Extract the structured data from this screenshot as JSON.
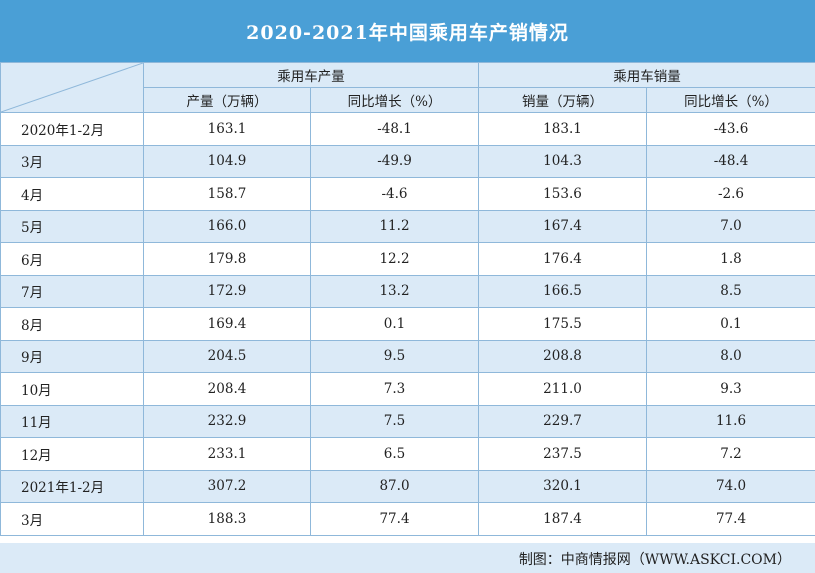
{
  "title": "2020-2021年中国乘用车产销情况",
  "header": {
    "groups": [
      "乘用车产量",
      "乘用车销量"
    ],
    "subheaders": [
      "产量（万辆）",
      "同比增长（%）",
      "销量（万辆）",
      "同比增长（%）"
    ]
  },
  "source": "制图：中商情报网（WWW.ASKCI.COM）",
  "chart_data": {
    "type": "table",
    "title": "2020-2021年中国乘用车产销情况",
    "columns": [
      "",
      "产量（万辆）",
      "同比增长（%）",
      "销量（万辆）",
      "同比增长（%）"
    ],
    "column_groups": [
      {
        "name": "乘用车产量",
        "columns": [
          "产量（万辆）",
          "同比增长（%）"
        ]
      },
      {
        "name": "乘用车销量",
        "columns": [
          "销量（万辆）",
          "同比增长（%）"
        ]
      }
    ],
    "rows": [
      {
        "period": "2020年1-2月",
        "values": [
          "163.1",
          "-48.1",
          "183.1",
          "-43.6"
        ]
      },
      {
        "period": "3月",
        "values": [
          "104.9",
          "-49.9",
          "104.3",
          "-48.4"
        ]
      },
      {
        "period": "4月",
        "values": [
          "158.7",
          "-4.6",
          "153.6",
          "-2.6"
        ]
      },
      {
        "period": "5月",
        "values": [
          "166.0",
          "11.2",
          "167.4",
          "7.0"
        ]
      },
      {
        "period": "6月",
        "values": [
          "179.8",
          "12.2",
          "176.4",
          "1.8"
        ]
      },
      {
        "period": "7月",
        "values": [
          "172.9",
          "13.2",
          "166.5",
          "8.5"
        ]
      },
      {
        "period": "8月",
        "values": [
          "169.4",
          "0.1",
          "175.5",
          "0.1"
        ]
      },
      {
        "period": "9月",
        "values": [
          "204.5",
          "9.5",
          "208.8",
          "8.0"
        ]
      },
      {
        "period": "10月",
        "values": [
          "208.4",
          "7.3",
          "211.0",
          "9.3"
        ]
      },
      {
        "period": "11月",
        "values": [
          "232.9",
          "7.5",
          "229.7",
          "11.6"
        ]
      },
      {
        "period": "12月",
        "values": [
          "233.1",
          "6.5",
          "237.5",
          "7.2"
        ]
      },
      {
        "period": "2021年1-2月",
        "values": [
          "307.2",
          "87.0",
          "320.1",
          "74.0"
        ]
      },
      {
        "period": "3月",
        "values": [
          "188.3",
          "77.4",
          "187.4",
          "77.4"
        ]
      }
    ]
  }
}
